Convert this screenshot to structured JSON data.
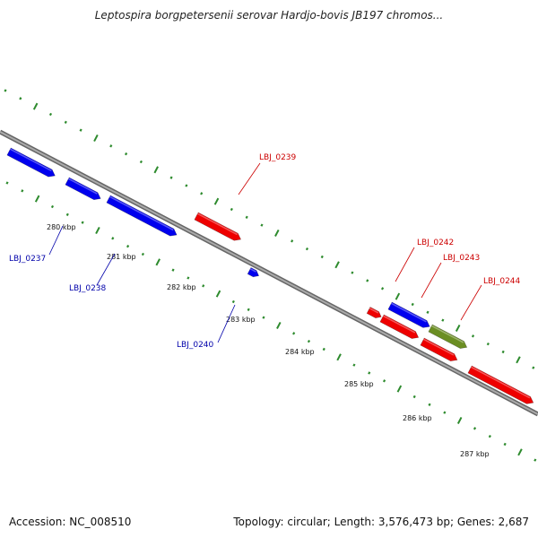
{
  "title": "Leptospira borgpetersenii serovar Hardjo-bovis JB197 chromos...",
  "footer": {
    "accession": "Accession: NC_008510",
    "summary": "Topology: circular; Length: 3,576,473 bp; Genes: 2,687"
  },
  "ticks": [
    "280 kbp",
    "281 kbp",
    "282 kbp",
    "283 kbp",
    "284 kbp",
    "285 kbp",
    "286 kbp",
    "287 kbp"
  ],
  "genes": [
    {
      "id": "g1",
      "label": "",
      "color": "#0000ee",
      "strand": "forward"
    },
    {
      "id": "g2",
      "label": "",
      "color": "#0000ee",
      "strand": "forward"
    },
    {
      "id": "g3",
      "label": "",
      "color": "#0000ee",
      "strand": "forward"
    },
    {
      "id": "g4",
      "label": "",
      "color": "#ee0000",
      "strand": "forward"
    },
    {
      "id": "g5",
      "label": "",
      "color": "#0000ee",
      "strand": "forward"
    },
    {
      "id": "g6",
      "label": "",
      "color": "#ee0000",
      "strand": "forward"
    },
    {
      "id": "g7",
      "label": "",
      "color": "#0000ee",
      "strand": "forward"
    },
    {
      "id": "g8",
      "label": "",
      "color": "#ee0000",
      "strand": "forward"
    },
    {
      "id": "g9",
      "label": "",
      "color": "#6b8e23",
      "strand": "forward"
    },
    {
      "id": "g10",
      "label": "",
      "color": "#ee0000",
      "strand": "forward"
    },
    {
      "id": "g11",
      "label": "",
      "color": "#ee0000",
      "strand": "forward"
    }
  ],
  "labels": [
    {
      "text": "LBJ_0237",
      "color": "#0000aa"
    },
    {
      "text": "LBJ_0238",
      "color": "#0000aa"
    },
    {
      "text": "LBJ_0239",
      "color": "#cc0000"
    },
    {
      "text": "LBJ_0240",
      "color": "#0000aa"
    },
    {
      "text": "LBJ_0242",
      "color": "#cc0000"
    },
    {
      "text": "LBJ_0243",
      "color": "#cc0000"
    },
    {
      "text": "LBJ_0244",
      "color": "#cc0000"
    }
  ],
  "colors": {
    "backbone": "#888888",
    "ticks": "#2e8b2e",
    "forward_gene": "#ee0000",
    "reverse_gene": "#0000ee",
    "other_gene": "#6b8e23"
  }
}
